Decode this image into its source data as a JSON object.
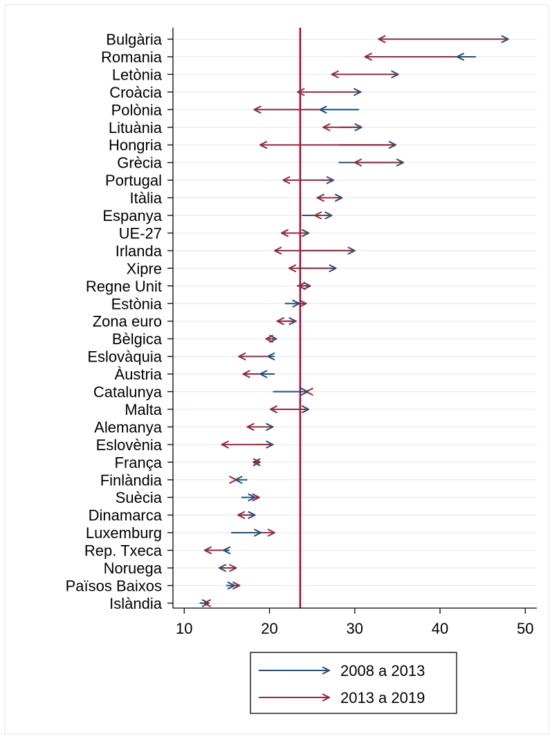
{
  "chart_data": {
    "type": "arrow-range",
    "xlabel": "",
    "ylabel": "",
    "xlim": [
      9,
      51
    ],
    "xticks": [
      "10",
      "20",
      "30",
      "40",
      "50"
    ],
    "reference_line": 23.6,
    "grid": "horizontal",
    "legend_position": "bottom",
    "colors": {
      "first_period": "#1f4e79",
      "second_period": "#8b2c3c",
      "reference": "#b3002d",
      "grid": "#e3eaee"
    },
    "series": [
      {
        "name": "2008 a 2013"
      },
      {
        "name": "2013 a 2019"
      }
    ],
    "categories": [
      {
        "label": "Bulgària",
        "y2008": 44.8,
        "y2013": 48.0,
        "y2019": 32.8
      },
      {
        "label": "Romania",
        "y2008": 44.2,
        "y2013": 42.0,
        "y2019": 31.2
      },
      {
        "label": "Letònia",
        "y2008": 34.2,
        "y2013": 35.1,
        "y2019": 27.3
      },
      {
        "label": "Croàcia",
        "y2008": 30.7,
        "y2013": 30.7,
        "y2019": 23.3
      },
      {
        "label": "Polònia",
        "y2008": 30.5,
        "y2013": 25.9,
        "y2019": 18.2
      },
      {
        "label": "Lituània",
        "y2008": 28.3,
        "y2013": 30.8,
        "y2019": 26.3
      },
      {
        "label": "Hongria",
        "y2008": 28.2,
        "y2013": 34.8,
        "y2019": 18.9
      },
      {
        "label": "Grècia",
        "y2008": 28.1,
        "y2013": 35.7,
        "y2019": 30.0
      },
      {
        "label": "Portugal",
        "y2008": 26.0,
        "y2013": 27.5,
        "y2019": 21.6
      },
      {
        "label": "Itàlia",
        "y2008": 25.5,
        "y2013": 28.5,
        "y2019": 25.6
      },
      {
        "label": "Espanya",
        "y2008": 23.8,
        "y2013": 27.3,
        "y2019": 25.3
      },
      {
        "label": "UE-27",
        "y2008": 23.7,
        "y2013": 24.6,
        "y2019": 21.4
      },
      {
        "label": "Irlanda",
        "y2008": 23.7,
        "y2013": 30.0,
        "y2019": 20.6
      },
      {
        "label": "Xipre",
        "y2008": 23.3,
        "y2013": 27.8,
        "y2019": 22.3
      },
      {
        "label": "Regne Unit",
        "y2008": 23.2,
        "y2013": 24.8,
        "y2019": 23.4
      },
      {
        "label": "Estònia",
        "y2008": 21.8,
        "y2013": 23.5,
        "y2019": 24.3
      },
      {
        "label": "Zona euro",
        "y2008": 21.7,
        "y2013": 23.1,
        "y2019": 20.9
      },
      {
        "label": "Bèlgica",
        "y2008": 20.8,
        "y2013": 20.8,
        "y2019": 19.6
      },
      {
        "label": "Eslovàquia",
        "y2008": 20.6,
        "y2013": 19.8,
        "y2019": 16.4
      },
      {
        "label": "Àustria",
        "y2008": 20.6,
        "y2013": 18.9,
        "y2019": 16.9
      },
      {
        "label": "Catalunya",
        "y2008": 20.4,
        "y2013": 24.5,
        "y2019": 24.3
      },
      {
        "label": "Malta",
        "y2008": 20.1,
        "y2013": 24.6,
        "y2019": 20.1
      },
      {
        "label": "Alemanya",
        "y2008": 20.1,
        "y2013": 20.4,
        "y2019": 17.4
      },
      {
        "label": "Eslovènia",
        "y2008": 18.5,
        "y2013": 20.4,
        "y2019": 14.4
      },
      {
        "label": "França",
        "y2008": 18.5,
        "y2013": 18.1,
        "y2019": 18.9
      },
      {
        "label": "Finlàndia",
        "y2008": 17.4,
        "y2013": 16.0,
        "y2019": 16.1
      },
      {
        "label": "Suècia",
        "y2008": 16.7,
        "y2013": 18.3,
        "y2019": 18.8
      },
      {
        "label": "Dinamarca",
        "y2008": 16.3,
        "y2013": 18.3,
        "y2019": 16.3
      },
      {
        "label": "Luxemburg",
        "y2008": 15.5,
        "y2013": 19.0,
        "y2019": 20.6
      },
      {
        "label": "Rep. Txeca",
        "y2008": 15.3,
        "y2013": 14.6,
        "y2019": 12.4
      },
      {
        "label": "Noruega",
        "y2008": 15.2,
        "y2013": 14.1,
        "y2019": 16.1
      },
      {
        "label": "Països Baixos",
        "y2008": 14.9,
        "y2013": 15.9,
        "y2019": 16.5
      },
      {
        "label": "Islàndia",
        "y2008": 11.8,
        "y2013": 12.9,
        "y2019": 12.3
      }
    ]
  }
}
